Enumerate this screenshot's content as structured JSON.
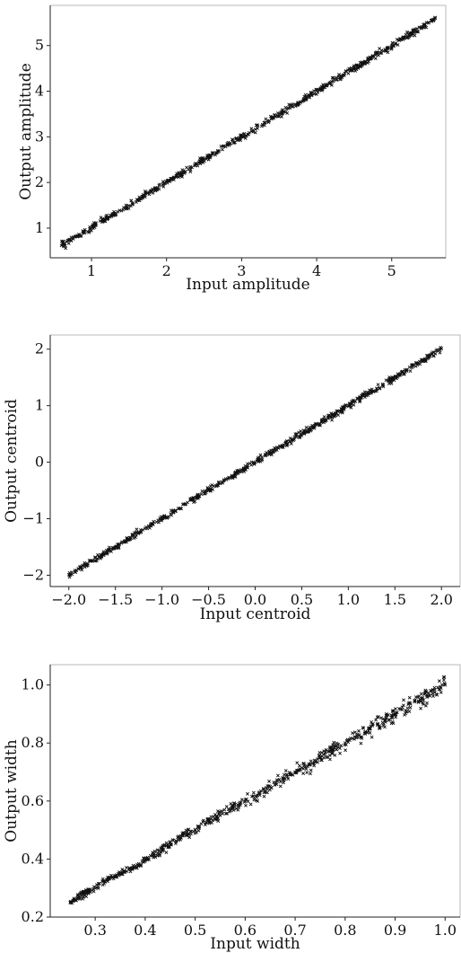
{
  "chart_data": [
    {
      "type": "scatter",
      "xlabel": "Input amplitude",
      "ylabel": "Output amplitude",
      "xlim": [
        0.45,
        5.72
      ],
      "ylim": [
        0.35,
        5.88
      ],
      "xticks": [
        1,
        2,
        3,
        4,
        5
      ],
      "yticks": [
        1,
        2,
        3,
        4,
        5
      ],
      "grid": false,
      "marker": "x",
      "series": [
        {
          "x": [
            0.6,
            0.75,
            0.9,
            1.05,
            1.2,
            1.35,
            1.5,
            1.65,
            1.8,
            1.95,
            2.1,
            2.25,
            2.4,
            2.55,
            2.7,
            2.85,
            3.0,
            3.15,
            3.3,
            3.45,
            3.6,
            3.75,
            3.9,
            4.05,
            4.2,
            4.35,
            4.5,
            4.65,
            4.8,
            4.95,
            5.1,
            5.25,
            5.4,
            5.58
          ],
          "y": [
            0.62,
            0.77,
            0.9,
            1.06,
            1.2,
            1.36,
            1.49,
            1.66,
            1.8,
            1.94,
            2.11,
            2.24,
            2.41,
            2.55,
            2.69,
            2.86,
            3.0,
            3.14,
            3.31,
            3.44,
            3.61,
            3.74,
            3.91,
            4.04,
            4.21,
            4.34,
            4.51,
            4.64,
            4.81,
            4.94,
            5.11,
            5.24,
            5.41,
            5.6
          ]
        }
      ]
    },
    {
      "type": "scatter",
      "xlabel": "Input centroid",
      "ylabel": "Output centroid",
      "xlim": [
        -2.2,
        2.2
      ],
      "ylim": [
        -2.2,
        2.25
      ],
      "xticks": [
        -2.0,
        -1.5,
        -1.0,
        -0.5,
        0.0,
        0.5,
        1.0,
        1.5,
        2.0
      ],
      "xtick_labels": [
        "−2.0",
        "−1.5",
        "−1.0",
        "−0.5",
        "0.0",
        "0.5",
        "1.0",
        "1.5",
        "2.0"
      ],
      "yticks": [
        -2,
        -1,
        0,
        1,
        2
      ],
      "ytick_labels": [
        "−2",
        "−1",
        "0",
        "1",
        "2"
      ],
      "grid": false,
      "marker": "x",
      "series": [
        {
          "x": [
            -2.0,
            -1.875,
            -1.75,
            -1.625,
            -1.5,
            -1.375,
            -1.25,
            -1.125,
            -1.0,
            -0.875,
            -0.75,
            -0.625,
            -0.5,
            -0.375,
            -0.25,
            -0.125,
            0.0,
            0.125,
            0.25,
            0.375,
            0.5,
            0.625,
            0.75,
            0.875,
            1.0,
            1.125,
            1.25,
            1.375,
            1.5,
            1.625,
            1.75,
            1.875,
            2.0
          ],
          "y": [
            -1.99,
            -1.87,
            -1.75,
            -1.62,
            -1.5,
            -1.38,
            -1.25,
            -1.12,
            -1.0,
            -0.88,
            -0.75,
            -0.62,
            -0.5,
            -0.38,
            -0.25,
            -0.12,
            0.0,
            0.13,
            0.25,
            0.37,
            0.5,
            0.63,
            0.75,
            0.87,
            1.0,
            1.13,
            1.25,
            1.37,
            1.5,
            1.63,
            1.75,
            1.88,
            2.01
          ]
        }
      ]
    },
    {
      "type": "scatter",
      "xlabel": "Input width",
      "ylabel": "Output width",
      "xlim": [
        0.21,
        1.03
      ],
      "ylim": [
        0.2,
        1.07
      ],
      "xticks": [
        0.3,
        0.4,
        0.5,
        0.6,
        0.7,
        0.8,
        0.9,
        1.0
      ],
      "xtick_labels": [
        "0.3",
        "0.4",
        "0.5",
        "0.6",
        "0.7",
        "0.8",
        "0.9",
        "1.0"
      ],
      "yticks": [
        0.2,
        0.4,
        0.6,
        0.8,
        1.0
      ],
      "ytick_labels": [
        "0.2",
        "0.4",
        "0.6",
        "0.8",
        "1.0"
      ],
      "grid": false,
      "marker": "x",
      "series": [
        {
          "x": [
            0.25,
            0.275,
            0.3,
            0.325,
            0.35,
            0.375,
            0.4,
            0.425,
            0.45,
            0.475,
            0.5,
            0.525,
            0.55,
            0.575,
            0.6,
            0.625,
            0.65,
            0.675,
            0.7,
            0.725,
            0.75,
            0.775,
            0.8,
            0.825,
            0.85,
            0.875,
            0.9,
            0.925,
            0.95,
            0.975,
            1.0
          ],
          "y": [
            0.25,
            0.28,
            0.3,
            0.33,
            0.35,
            0.37,
            0.4,
            0.42,
            0.45,
            0.48,
            0.5,
            0.53,
            0.55,
            0.58,
            0.6,
            0.62,
            0.65,
            0.68,
            0.7,
            0.72,
            0.75,
            0.78,
            0.8,
            0.82,
            0.85,
            0.87,
            0.9,
            0.92,
            0.95,
            0.97,
            1.0
          ]
        }
      ]
    }
  ]
}
